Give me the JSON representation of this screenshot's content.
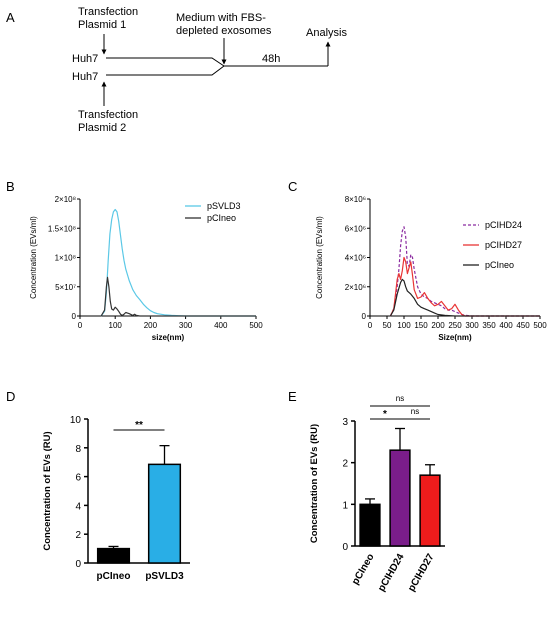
{
  "panels": {
    "A": {
      "label": "A",
      "cell_top": "Huh7",
      "cell_bottom": "Huh7",
      "transfection1_line1": "Transfection",
      "transfection1_line2": "Plasmid 1",
      "transfection2_line1": "Transfection",
      "transfection2_line2": "Plasmid 2",
      "medium_line1": "Medium with FBS-",
      "medium_line2": "depleted exosomes",
      "duration": "48h",
      "analysis": "Analysis"
    },
    "B": {
      "label": "B"
    },
    "C": {
      "label": "C"
    },
    "D": {
      "label": "D",
      "significance": "**"
    },
    "E": {
      "label": "E",
      "sig_ns_top": "ns",
      "sig_star": "*",
      "sig_ns_right": "ns"
    }
  },
  "chart_data": [
    {
      "id": "B",
      "type": "line",
      "xlabel": "size(nm)",
      "ylabel": "Concentration (EVs/ml)",
      "xlim": [
        0,
        500
      ],
      "ylim": [
        0,
        200000000
      ],
      "xticks": [
        "0",
        "100",
        "200",
        "300",
        "400",
        "500"
      ],
      "yticks": [
        "0",
        "5×10⁷",
        "1×10⁸",
        "1.5×10⁸",
        "2×10⁸"
      ],
      "legend_position": "top-right",
      "series": [
        {
          "name": "pSVLD3",
          "color": "#5bc8e6",
          "x": [
            60,
            70,
            75,
            80,
            85,
            90,
            95,
            100,
            105,
            110,
            115,
            120,
            125,
            130,
            140,
            150,
            160,
            170,
            180,
            190,
            200,
            210,
            220,
            240,
            260,
            280,
            300,
            500
          ],
          "y": [
            0,
            8000000,
            40000000,
            95000000,
            140000000,
            165000000,
            178000000,
            182000000,
            178000000,
            162000000,
            138000000,
            115000000,
            95000000,
            80000000,
            60000000,
            45000000,
            35000000,
            28000000,
            20000000,
            14000000,
            9000000,
            6000000,
            4000000,
            2000000,
            1000000,
            500000,
            0,
            0
          ]
        },
        {
          "name": "pCIneo",
          "color": "#333333",
          "x": [
            60,
            70,
            75,
            78,
            82,
            86,
            90,
            95,
            100,
            105,
            110,
            115,
            120,
            125,
            130,
            140,
            150,
            155,
            160,
            170,
            180,
            500
          ],
          "y": [
            0,
            10000000,
            50000000,
            66000000,
            50000000,
            25000000,
            12000000,
            10000000,
            15000000,
            12000000,
            8000000,
            3000000,
            1000000,
            3000000,
            6000000,
            4000000,
            1000000,
            3000000,
            1000000,
            0,
            0,
            0
          ]
        }
      ]
    },
    {
      "id": "C",
      "type": "line",
      "xlabel": "Size(nm)",
      "ylabel": "Concentration (EVs/ml)",
      "xlim": [
        0,
        500
      ],
      "ylim": [
        0,
        8000000
      ],
      "xticks": [
        "0",
        "50",
        "100",
        "150",
        "200",
        "250",
        "300",
        "350",
        "400",
        "450",
        "500"
      ],
      "yticks": [
        "0",
        "2×10⁶",
        "4×10⁶",
        "6×10⁶",
        "8×10⁶"
      ],
      "legend_position": "top-right",
      "series": [
        {
          "name": "pCIHD24",
          "color": "#8b2ba0",
          "dashed": true,
          "x": [
            60,
            70,
            80,
            85,
            90,
            95,
            100,
            105,
            110,
            115,
            120,
            125,
            130,
            140,
            150,
            160,
            170,
            180,
            190,
            200,
            210,
            220,
            230,
            240,
            250,
            260,
            270,
            280,
            300,
            500
          ],
          "y": [
            0,
            500000,
            2000000,
            3200000,
            4800000,
            5800000,
            6100000,
            5400000,
            3500000,
            3400000,
            4200000,
            4000000,
            3200000,
            2000000,
            1500000,
            1300000,
            1200000,
            1000000,
            900000,
            800000,
            700000,
            500000,
            400000,
            400000,
            300000,
            200000,
            100000,
            50000,
            0,
            0
          ]
        },
        {
          "name": "pCIHD27",
          "color": "#e83535",
          "x": [
            60,
            70,
            75,
            80,
            85,
            90,
            95,
            100,
            105,
            110,
            115,
            120,
            125,
            130,
            140,
            150,
            160,
            170,
            180,
            190,
            200,
            210,
            220,
            230,
            240,
            250,
            260,
            270,
            280,
            500
          ],
          "y": [
            0,
            500000,
            1500000,
            2500000,
            2900000,
            2500000,
            3100000,
            4000000,
            3700000,
            2900000,
            3300000,
            3700000,
            2800000,
            1800000,
            1200000,
            1300000,
            1600000,
            1200000,
            900000,
            700000,
            800000,
            1000000,
            700000,
            400000,
            500000,
            800000,
            400000,
            100000,
            0,
            0
          ]
        },
        {
          "name": "pCIneo",
          "color": "#222222",
          "x": [
            60,
            70,
            80,
            90,
            95,
            100,
            105,
            110,
            115,
            120,
            130,
            140,
            150,
            160,
            170,
            180,
            190,
            200,
            220,
            250,
            500
          ],
          "y": [
            0,
            400000,
            1500000,
            2300000,
            2500000,
            2400000,
            2000000,
            1700000,
            1600000,
            1500000,
            1200000,
            800000,
            600000,
            500000,
            400000,
            300000,
            200000,
            100000,
            50000,
            0,
            0
          ]
        }
      ]
    },
    {
      "id": "D",
      "type": "bar",
      "ylabel": "Concentration of EVs (RU)",
      "ylim": [
        0,
        10
      ],
      "yticks": [
        "0",
        "2",
        "4",
        "6",
        "8",
        "10"
      ],
      "categories": [
        "pCIneo",
        "pSVLD3"
      ],
      "values": [
        1.0,
        6.85
      ],
      "errors": [
        0.15,
        1.3
      ],
      "colors": [
        "#000000",
        "#29aee6"
      ]
    },
    {
      "id": "E",
      "type": "bar",
      "ylabel": "Concentration of EVs (RU)",
      "ylim": [
        0,
        3
      ],
      "yticks": [
        "0",
        "1",
        "2",
        "3"
      ],
      "categories": [
        "pCIneo",
        "pCIHD24",
        "pCIHD27"
      ],
      "values": [
        1.0,
        2.3,
        1.7
      ],
      "errors": [
        0.13,
        0.52,
        0.25
      ],
      "colors": [
        "#000000",
        "#7a1d8a",
        "#ee1c1c"
      ]
    }
  ]
}
